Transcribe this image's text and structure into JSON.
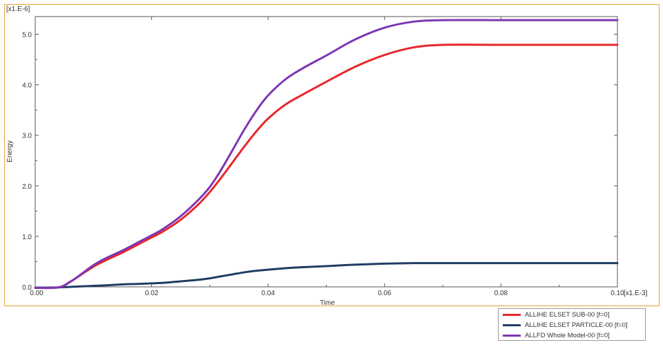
{
  "chart_data": {
    "type": "line",
    "xlabel": "Time",
    "ylabel": "Energy",
    "x_multiplier": "[x1.E-3]",
    "y_multiplier": "[x1.E-6]",
    "xlim": [
      0.0,
      0.1
    ],
    "ylim": [
      0.0,
      5.35
    ],
    "x_ticks": [
      "0.00",
      "0.02",
      "0.04",
      "0.06",
      "0.08",
      "0.10"
    ],
    "y_ticks": [
      "0.0",
      "1.0",
      "2.0",
      "3.0",
      "4.0",
      "5.0"
    ],
    "legend_position": "bottom-right outside",
    "x": [
      0.0,
      0.004,
      0.006,
      0.008,
      0.01,
      0.012,
      0.015,
      0.018,
      0.02,
      0.022,
      0.025,
      0.028,
      0.03,
      0.032,
      0.034,
      0.036,
      0.038,
      0.04,
      0.043,
      0.046,
      0.05,
      0.055,
      0.06,
      0.065,
      0.07,
      0.08,
      0.09,
      0.1
    ],
    "series": [
      {
        "name": "ALLIHE ELSET SUB-00 [f=0]",
        "color": "#e8262b",
        "values": [
          -0.02,
          -0.01,
          0.1,
          0.25,
          0.4,
          0.52,
          0.68,
          0.86,
          0.98,
          1.1,
          1.33,
          1.63,
          1.88,
          2.17,
          2.48,
          2.79,
          3.08,
          3.33,
          3.61,
          3.81,
          4.06,
          4.36,
          4.59,
          4.74,
          4.79,
          4.79,
          4.79,
          4.79
        ]
      },
      {
        "name": "ALLIHE ELSET PARTICLE-00 [f=0]",
        "color": "#1f3d63",
        "values": [
          -0.02,
          -0.01,
          0.0,
          0.01,
          0.02,
          0.03,
          0.05,
          0.06,
          0.07,
          0.08,
          0.11,
          0.14,
          0.17,
          0.21,
          0.25,
          0.29,
          0.32,
          0.34,
          0.37,
          0.39,
          0.41,
          0.44,
          0.46,
          0.47,
          0.47,
          0.47,
          0.47,
          0.47
        ]
      },
      {
        "name": "ALLFD Whole Model-00 [f=0]",
        "color": "#7e35b5",
        "values": [
          -0.02,
          -0.01,
          0.1,
          0.26,
          0.43,
          0.56,
          0.72,
          0.9,
          1.02,
          1.15,
          1.4,
          1.72,
          1.98,
          2.33,
          2.73,
          3.13,
          3.49,
          3.79,
          4.11,
          4.33,
          4.58,
          4.9,
          5.13,
          5.25,
          5.28,
          5.28,
          5.28,
          5.28
        ]
      }
    ]
  }
}
